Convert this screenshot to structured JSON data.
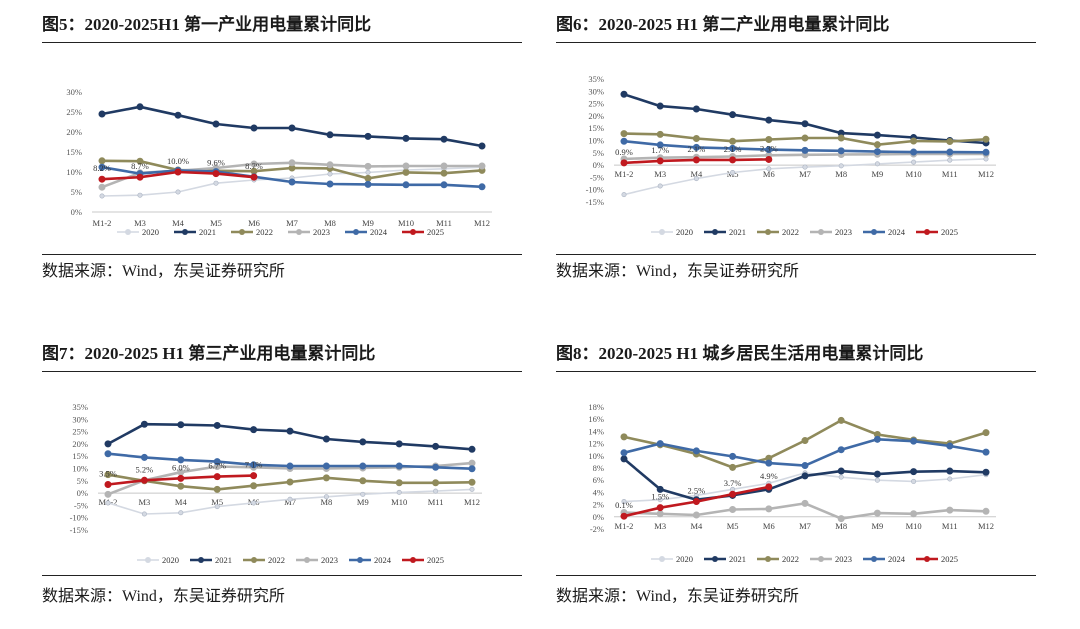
{
  "legend_series": [
    "2020",
    "2021",
    "2022",
    "2023",
    "2024",
    "2025"
  ],
  "colors": {
    "2020": "#d4d9e2",
    "2021": "#203a63",
    "2022": "#8f8a5b",
    "2023": "#b4b4b4",
    "2024": "#3f6aa6",
    "2025": "#c0191f"
  },
  "panels": [
    {
      "title": "图5：2020-2025H1 第一产业用电量累计同比",
      "source": "数据来源：Wind，东吴证券研究所",
      "chart_data": {
        "type": "line",
        "categories": [
          "M1-2",
          "M3",
          "M4",
          "M5",
          "M6",
          "M7",
          "M8",
          "M9",
          "M10",
          "M11",
          "M12"
        ],
        "ylim": [
          0,
          30
        ],
        "ystep": 5,
        "grid": false,
        "legend": "bottom",
        "series": [
          {
            "name": "2020",
            "values": [
              4.0,
              4.2,
              5.0,
              7.2,
              8.0,
              8.5,
              9.5,
              9.9,
              10.5,
              10.8,
              11.2
            ]
          },
          {
            "name": "2021",
            "values": [
              24.5,
              26.3,
              24.2,
              22.0,
              21.0,
              21.0,
              19.3,
              18.9,
              18.4,
              18.2,
              16.5
            ]
          },
          {
            "name": "2022",
            "values": [
              12.8,
              12.7,
              10.5,
              10.3,
              10.2,
              11.0,
              10.9,
              8.4,
              9.9,
              9.7,
              10.4
            ]
          },
          {
            "name": "2023",
            "values": [
              6.2,
              9.8,
              10.3,
              11.0,
              12.0,
              12.3,
              11.8,
              11.4,
              11.5,
              11.5,
              11.5
            ]
          },
          {
            "name": "2024",
            "values": [
              11.2,
              9.6,
              10.4,
              10.1,
              8.8,
              7.5,
              7.0,
              6.9,
              6.8,
              6.8,
              6.3
            ]
          },
          {
            "name": "2025",
            "values": [
              8.2,
              8.7,
              10.0,
              9.6,
              8.7,
              null,
              null,
              null,
              null,
              null,
              null
            ],
            "labels": [
              "8.2%",
              "8.7%",
              "10.0%",
              "9.6%",
              "8.7%"
            ]
          }
        ]
      }
    },
    {
      "title": "图6：2020-2025 H1 第二产业用电量累计同比",
      "source": "数据来源：Wind，东吴证券研究所",
      "chart_data": {
        "type": "line",
        "categories": [
          "M1-2",
          "M3",
          "M4",
          "M5",
          "M6",
          "M7",
          "M8",
          "M9",
          "M10",
          "M11",
          "M12"
        ],
        "ylim": [
          -15,
          35
        ],
        "ystep": 5,
        "grid": false,
        "legend": "bottom",
        "series": [
          {
            "name": "2020",
            "values": [
              -12.0,
              -8.5,
              -5.5,
              -3.0,
              -1.5,
              -0.8,
              -0.3,
              0.5,
              1.2,
              2.0,
              2.5
            ]
          },
          {
            "name": "2021",
            "values": [
              28.8,
              24.0,
              22.8,
              20.5,
              18.3,
              16.8,
              13.0,
              12.2,
              11.2,
              10.0,
              9.0
            ]
          },
          {
            "name": "2022",
            "values": [
              12.8,
              12.5,
              10.8,
              9.7,
              10.4,
              11.0,
              11.0,
              8.3,
              9.8,
              9.6,
              10.5
            ]
          },
          {
            "name": "2023",
            "values": [
              2.5,
              3.0,
              3.2,
              3.5,
              4.0,
              4.2,
              4.3,
              4.4,
              4.5,
              4.5,
              4.5
            ]
          },
          {
            "name": "2024",
            "values": [
              9.7,
              8.2,
              7.2,
              6.8,
              6.3,
              6.0,
              5.8,
              5.5,
              5.3,
              5.3,
              5.2
            ]
          },
          {
            "name": "2025",
            "values": [
              0.9,
              1.7,
              2.1,
              2.1,
              2.3,
              null,
              null,
              null,
              null,
              null,
              null
            ],
            "labels": [
              "0.9%",
              "1.7%",
              "2.1%",
              "2.1%",
              "2.3%"
            ]
          }
        ]
      }
    },
    {
      "title": "图7：2020-2025 H1 第三产业用电量累计同比",
      "source": "数据来源：Wind，东吴证券研究所",
      "chart_data": {
        "type": "line",
        "categories": [
          "M1-2",
          "M3",
          "M4",
          "M5",
          "M6",
          "M7",
          "M8",
          "M9",
          "M10",
          "M11",
          "M12"
        ],
        "ylim": [
          -15,
          35
        ],
        "ystep": 5,
        "grid": false,
        "legend": "bottom",
        "series": [
          {
            "name": "2020",
            "values": [
              -4.0,
              -8.5,
              -8.0,
              -5.5,
              -4.0,
              -2.5,
              -1.5,
              -0.5,
              0.3,
              0.8,
              1.5
            ]
          },
          {
            "name": "2021",
            "values": [
              20.0,
              28.0,
              27.8,
              27.5,
              25.8,
              25.2,
              22.0,
              20.8,
              20.0,
              19.0,
              17.8
            ]
          },
          {
            "name": "2022",
            "values": [
              7.5,
              5.0,
              2.8,
              1.5,
              3.0,
              4.5,
              6.2,
              5.0,
              4.2,
              4.2,
              4.4
            ]
          },
          {
            "name": "2023",
            "values": [
              -0.5,
              5.2,
              8.5,
              10.8,
              10.5,
              10.0,
              10.0,
              10.2,
              10.5,
              11.0,
              12.2
            ]
          },
          {
            "name": "2024",
            "values": [
              16.0,
              14.5,
              13.5,
              12.8,
              11.5,
              11.0,
              11.0,
              11.0,
              11.0,
              10.5,
              9.9
            ]
          },
          {
            "name": "2025",
            "values": [
              3.5,
              5.2,
              6.0,
              6.7,
              7.1,
              null,
              null,
              null,
              null,
              null,
              null
            ],
            "labels": [
              "3.5%",
              "5.2%",
              "6.0%",
              "6.7%",
              "7.1%"
            ]
          }
        ]
      }
    },
    {
      "title": "图8：2020-2025 H1 城乡居民生活用电量累计同比",
      "source": "数据来源：Wind，东吴证券研究所",
      "chart_data": {
        "type": "line",
        "categories": [
          "M1-2",
          "M3",
          "M4",
          "M5",
          "M6",
          "M7",
          "M8",
          "M9",
          "M10",
          "M11",
          "M12"
        ],
        "ylim": [
          -2,
          18
        ],
        "ystep": 2,
        "grid": false,
        "legend": "bottom",
        "series": [
          {
            "name": "2020",
            "values": [
              2.5,
              2.8,
              3.5,
              4.5,
              5.5,
              7.2,
              6.5,
              6.0,
              5.8,
              6.2,
              6.9
            ]
          },
          {
            "name": "2021",
            "values": [
              9.5,
              4.5,
              2.8,
              3.5,
              4.5,
              6.7,
              7.5,
              7.0,
              7.4,
              7.5,
              7.3
            ]
          },
          {
            "name": "2022",
            "values": [
              13.1,
              11.8,
              10.3,
              8.1,
              9.6,
              12.5,
              15.8,
              13.5,
              12.6,
              12.0,
              13.8
            ]
          },
          {
            "name": "2023",
            "values": [
              0.7,
              0.5,
              0.3,
              1.2,
              1.3,
              2.2,
              -0.3,
              0.6,
              0.5,
              1.1,
              0.9
            ]
          },
          {
            "name": "2024",
            "values": [
              10.5,
              12.0,
              10.8,
              9.9,
              8.8,
              8.4,
              11.0,
              12.7,
              12.4,
              11.6,
              10.6
            ]
          },
          {
            "name": "2025",
            "values": [
              0.1,
              1.5,
              2.5,
              3.7,
              4.9,
              null,
              null,
              null,
              null,
              null,
              null
            ],
            "labels": [
              "0.1%",
              "1.5%",
              "2.5%",
              "3.7%",
              "4.9%"
            ]
          }
        ]
      }
    }
  ]
}
